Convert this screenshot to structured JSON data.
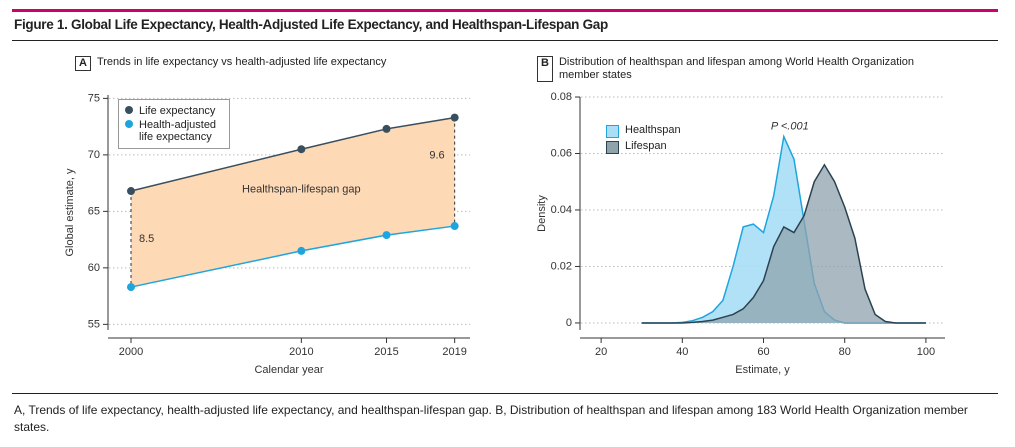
{
  "figure_title": "Figure 1. Global Life Expectancy, Health-Adjusted Life Expectancy, and Healthspan-Lifespan Gap",
  "caption": "A, Trends of life expectancy, health-adjusted life expectancy, and healthspan-lifespan gap. B, Distribution of healthspan and lifespan among 183 World Health Organization member states.",
  "chart_data": [
    {
      "type": "line",
      "panel": "A",
      "title": "Trends in life expectancy vs health-adjusted life expectancy",
      "x": [
        2000,
        2010,
        2015,
        2019
      ],
      "xlim": [
        1998.65,
        2019.9
      ],
      "xticks": [
        2000,
        2010,
        2015,
        2019
      ],
      "ylim": [
        54.5,
        75.3
      ],
      "yticks": [
        55,
        60,
        65,
        70,
        75
      ],
      "xlabel": "Calendar year",
      "ylabel": "Global estimate, y",
      "grid": true,
      "legend": "upper left",
      "gap_label": "Healthspan-lifespan gap",
      "gap_color": "#fdd9b5",
      "gap_values": [
        8.5,
        9.6
      ],
      "series": [
        {
          "name": "Life expectancy",
          "color": "#3a4f5e",
          "values": [
            66.8,
            70.5,
            72.3,
            73.3
          ]
        },
        {
          "name": "Health-adjusted life expectancy",
          "color": "#1ea5de",
          "values": [
            58.3,
            61.5,
            62.9,
            63.7
          ]
        }
      ]
    },
    {
      "type": "density",
      "panel": "B",
      "title": "Distribution of healthspan and lifespan among World Health Organization member states",
      "x": [
        30,
        32.5,
        35,
        37.5,
        40,
        42.5,
        45,
        47.5,
        50,
        52.5,
        55,
        57.5,
        60,
        62.5,
        65,
        67.5,
        70,
        72.5,
        75,
        77.5,
        80,
        82.5,
        85,
        87.5,
        90,
        92.5,
        95,
        97.5,
        100
      ],
      "xlim": [
        14.8,
        104.7
      ],
      "xticks": [
        20,
        40,
        60,
        80,
        100
      ],
      "ylim": [
        -0.0025,
        0.08
      ],
      "yticks": [
        0,
        0.02,
        0.04,
        0.06,
        0.08
      ],
      "xlabel": "Estimate, y",
      "ylabel": "Density",
      "grid": true,
      "legend": "upper left",
      "annotation": "P <.001",
      "series": [
        {
          "name": "Healthspan",
          "color": "#a9def5",
          "edge_color": "#1ea5de",
          "values": [
            0,
            0,
            0,
            0,
            0.0002,
            0.0008,
            0.002,
            0.004,
            0.008,
            0.02,
            0.034,
            0.035,
            0.032,
            0.045,
            0.066,
            0.058,
            0.036,
            0.014,
            0.004,
            0.001,
            0,
            0,
            0,
            0,
            0,
            0,
            0,
            0,
            0
          ]
        },
        {
          "name": "Lifespan",
          "color": "#8fa3ad",
          "edge_color": "#2c4251",
          "values": [
            0,
            0,
            0,
            0,
            0,
            0.0002,
            0.0005,
            0.001,
            0.002,
            0.003,
            0.005,
            0.009,
            0.015,
            0.027,
            0.034,
            0.032,
            0.038,
            0.05,
            0.056,
            0.05,
            0.041,
            0.03,
            0.012,
            0.003,
            0.0005,
            0,
            0,
            0,
            0
          ]
        }
      ]
    }
  ]
}
